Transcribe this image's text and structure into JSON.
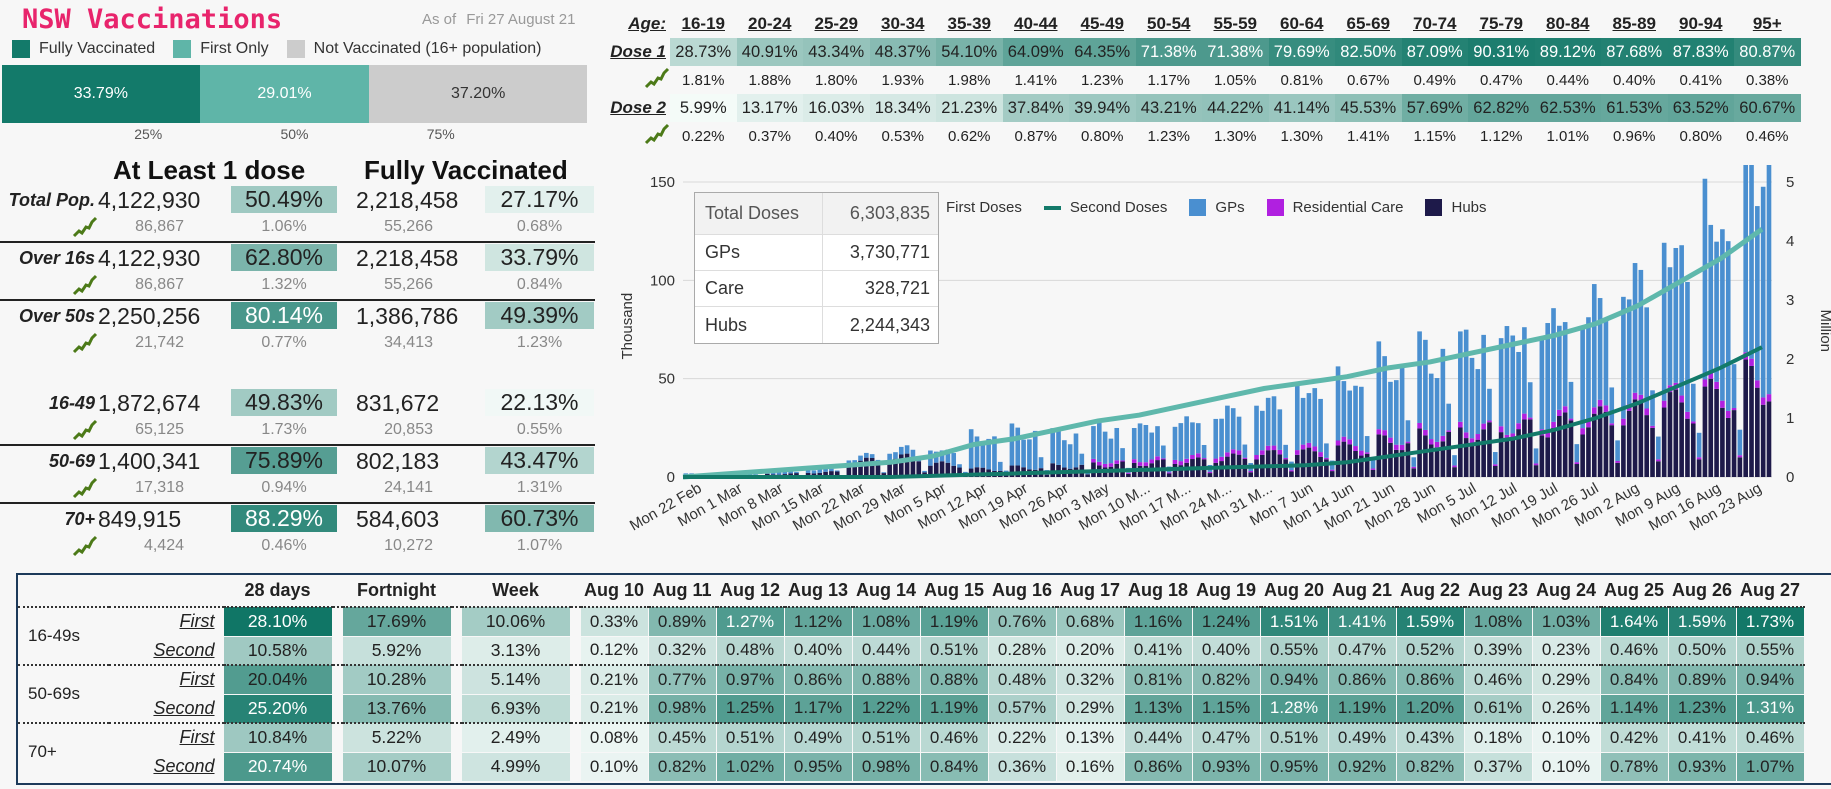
{
  "header": {
    "title": "NSW Vaccinations",
    "as_of_label": "As of",
    "as_of_date": "Fri 27 August 21"
  },
  "status_legend": [
    {
      "label": "Fully Vaccinated",
      "color": "#137a6a"
    },
    {
      "label": "First Only",
      "color": "#5fb5a8"
    },
    {
      "label": "Not Vaccinated (16+ population)",
      "color": "#cccccc"
    }
  ],
  "stacked_bar": {
    "segments": [
      {
        "label": "33.79%",
        "value": 33.79,
        "color": "#137a6a",
        "text_color": "#ffffff"
      },
      {
        "label": "29.01%",
        "value": 29.01,
        "color": "#5fb5a8",
        "text_color": "#ffffff"
      },
      {
        "label": "37.20%",
        "value": 37.2,
        "color": "#cccccc",
        "text_color": "#333333"
      }
    ],
    "ticks": [
      {
        "label": "25%",
        "value": 25
      },
      {
        "label": "50%",
        "value": 50
      },
      {
        "label": "75%",
        "value": 75
      }
    ]
  },
  "stats": {
    "heading_one_dose": "At Least 1 dose",
    "heading_fully": "Fully Vaccinated",
    "rows": [
      {
        "label": "Total Pop.",
        "dose1": "4,122,930",
        "dose1_pct": "50.49%",
        "dose1_pct_v": 50.49,
        "full": "2,218,458",
        "full_pct": "27.17%",
        "full_pct_v": 27.17,
        "d_dose1": "86,867",
        "d_dose1_pct": "1.06%",
        "d_full": "55,266",
        "d_full_pct": "0.68%"
      },
      {
        "label": "Over 16s",
        "dose1": "4,122,930",
        "dose1_pct": "62.80%",
        "dose1_pct_v": 62.8,
        "full": "2,218,458",
        "full_pct": "33.79%",
        "full_pct_v": 33.79,
        "d_dose1": "86,867",
        "d_dose1_pct": "1.32%",
        "d_full": "55,266",
        "d_full_pct": "0.84%"
      },
      {
        "label": "Over 50s",
        "dose1": "2,250,256",
        "dose1_pct": "80.14%",
        "dose1_pct_v": 80.14,
        "full": "1,386,786",
        "full_pct": "49.39%",
        "full_pct_v": 49.39,
        "d_dose1": "21,742",
        "d_dose1_pct": "0.77%",
        "d_full": "34,413",
        "d_full_pct": "1.23%"
      },
      {
        "label": "16-49",
        "dose1": "1,872,674",
        "dose1_pct": "49.83%",
        "dose1_pct_v": 49.83,
        "full": "831,672",
        "full_pct": "22.13%",
        "full_pct_v": 22.13,
        "d_dose1": "65,125",
        "d_dose1_pct": "1.73%",
        "d_full": "20,853",
        "d_full_pct": "0.55%"
      },
      {
        "label": "50-69",
        "dose1": "1,400,341",
        "dose1_pct": "75.89%",
        "dose1_pct_v": 75.89,
        "full": "802,183",
        "full_pct": "43.47%",
        "full_pct_v": 43.47,
        "d_dose1": "17,318",
        "d_dose1_pct": "0.94%",
        "d_full": "24,141",
        "d_full_pct": "1.31%"
      },
      {
        "label": "70+",
        "dose1": "849,915",
        "dose1_pct": "88.29%",
        "dose1_pct_v": 88.29,
        "full": "584,603",
        "full_pct": "60.73%",
        "full_pct_v": 60.73,
        "d_dose1": "4,424",
        "d_dose1_pct": "0.46%",
        "d_full": "10,272",
        "d_full_pct": "1.07%"
      }
    ]
  },
  "age_table": {
    "age_label": "Age:",
    "dose1_label": "Dose 1",
    "dose2_label": "Dose 2",
    "ages": [
      "16-19",
      "20-24",
      "25-29",
      "30-34",
      "35-39",
      "40-44",
      "45-49",
      "50-54",
      "55-59",
      "60-64",
      "65-69",
      "70-74",
      "75-79",
      "80-84",
      "85-89",
      "90-94",
      "95+"
    ],
    "dose1": [
      "28.73%",
      "40.91%",
      "43.34%",
      "48.37%",
      "54.10%",
      "64.09%",
      "64.35%",
      "71.38%",
      "71.38%",
      "79.69%",
      "82.50%",
      "87.09%",
      "90.31%",
      "89.12%",
      "87.68%",
      "87.83%",
      "80.87%"
    ],
    "dose1_v": [
      28.73,
      40.91,
      43.34,
      48.37,
      54.1,
      64.09,
      64.35,
      71.38,
      71.38,
      79.69,
      82.5,
      87.09,
      90.31,
      89.12,
      87.68,
      87.83,
      80.87
    ],
    "dose1_change": [
      "1.81%",
      "1.88%",
      "1.80%",
      "1.93%",
      "1.98%",
      "1.41%",
      "1.23%",
      "1.17%",
      "1.05%",
      "0.81%",
      "0.67%",
      "0.49%",
      "0.47%",
      "0.44%",
      "0.40%",
      "0.41%",
      "0.38%"
    ],
    "dose2": [
      "5.99%",
      "13.17%",
      "16.03%",
      "18.34%",
      "21.23%",
      "37.84%",
      "39.94%",
      "43.21%",
      "44.22%",
      "41.14%",
      "45.53%",
      "57.69%",
      "62.82%",
      "62.53%",
      "61.53%",
      "63.52%",
      "60.67%"
    ],
    "dose2_v": [
      5.99,
      13.17,
      16.03,
      18.34,
      21.23,
      37.84,
      39.94,
      43.21,
      44.22,
      41.14,
      45.53,
      57.69,
      62.82,
      62.53,
      61.53,
      63.52,
      60.67
    ],
    "dose2_change": [
      "0.22%",
      "0.37%",
      "0.40%",
      "0.53%",
      "0.62%",
      "0.87%",
      "0.80%",
      "1.23%",
      "1.30%",
      "1.30%",
      "1.41%",
      "1.15%",
      "1.12%",
      "1.01%",
      "0.96%",
      "0.80%",
      "0.46%"
    ]
  },
  "totals_box": {
    "header_label": "Total Doses",
    "header_value": "6,303,835",
    "rows": [
      {
        "label": "GPs",
        "value": "3,730,771"
      },
      {
        "label": "Care",
        "value": "328,721"
      },
      {
        "label": "Hubs",
        "value": "2,244,343"
      }
    ]
  },
  "chart_data": {
    "type": "bar",
    "stacked": true,
    "left_axis_label": "Thousand",
    "right_axis_label": "Million",
    "ylim": [
      0,
      150
    ],
    "yticks": [
      0,
      50,
      100,
      150
    ],
    "y2lim": [
      0,
      5
    ],
    "y2ticks": [
      0,
      1,
      2,
      3,
      4,
      5
    ],
    "x_tick_labels": [
      "Mon 22 Feb",
      "Mon 1 Mar",
      "Mon 8 Mar",
      "Mon 15 Mar",
      "Mon 22 Mar",
      "Mon 29 Mar",
      "Mon 5 Apr",
      "Mon 12 Apr",
      "Mon 19 Apr",
      "Mon 26 Apr",
      "Mon 3 May",
      "Mon 10 M...",
      "Mon 17 M...",
      "Mon 24 M...",
      "Mon 31 M...",
      "Mon 7 Jun",
      "Mon 14 Jun",
      "Mon 21 Jun",
      "Mon 28 Jun",
      "Mon 5 Jul",
      "Mon 12 Jul",
      "Mon 19 Jul",
      "Mon 26 Jul",
      "Mon 2 Aug",
      "Mon 9 Aug",
      "Mon 16 Aug",
      "Mon 23 Aug"
    ],
    "legend": [
      {
        "label": "First Doses",
        "kind": "line",
        "color": "#5fb8ac"
      },
      {
        "label": "Second Doses",
        "kind": "line",
        "color": "#137a6a"
      },
      {
        "label": "GPs",
        "kind": "bar",
        "color": "#4a8fd0"
      },
      {
        "label": "Residential Care",
        "kind": "bar",
        "color": "#b020e0"
      },
      {
        "label": "Hubs",
        "kind": "bar",
        "color": "#1e1a4a"
      }
    ],
    "weekly_peak_gps_thousand": [
      1,
      1,
      2,
      2,
      3,
      5,
      8,
      20,
      22,
      20,
      21,
      22,
      24,
      27,
      30,
      35,
      38,
      45,
      50,
      55,
      60,
      65,
      70,
      78,
      90,
      105,
      140
    ],
    "weekly_peak_hubs_thousand": [
      1,
      1,
      2,
      3,
      10,
      12,
      8,
      5,
      6,
      7,
      8,
      9,
      10,
      12,
      14,
      15,
      18,
      22,
      25,
      28,
      30,
      33,
      36,
      40,
      45,
      50,
      60
    ],
    "first_doses_million": [
      0,
      0.05,
      0.1,
      0.15,
      0.2,
      0.25,
      0.35,
      0.55,
      0.65,
      0.8,
      0.95,
      1.05,
      1.2,
      1.35,
      1.5,
      1.6,
      1.7,
      1.85,
      1.95,
      2.1,
      2.25,
      2.4,
      2.6,
      2.9,
      3.3,
      3.7,
      4.2
    ],
    "second_doses_million": [
      0,
      0,
      0,
      0,
      0,
      0,
      0.02,
      0.04,
      0.06,
      0.08,
      0.1,
      0.12,
      0.14,
      0.16,
      0.18,
      0.2,
      0.25,
      0.35,
      0.45,
      0.55,
      0.65,
      0.8,
      1.0,
      1.25,
      1.55,
      1.85,
      2.2
    ]
  },
  "daily_table": {
    "headers": [
      "28 days",
      "Fortnight",
      "Week"
    ],
    "days": [
      "Aug 10",
      "Aug 11",
      "Aug 12",
      "Aug 13",
      "Aug 14",
      "Aug 15",
      "Aug 16",
      "Aug 17",
      "Aug 18",
      "Aug 19",
      "Aug 20",
      "Aug 21",
      "Aug 22",
      "Aug 23",
      "Aug 24",
      "Aug 25",
      "Aug 26",
      "Aug 27"
    ],
    "groups": [
      {
        "name": "16-49s",
        "rows": [
          {
            "kind": "First",
            "period": [
              "28.10%",
              "17.69%",
              "10.06%"
            ],
            "period_v": [
              28.1,
              17.69,
              10.06
            ],
            "daily": [
              "0.33%",
              "0.89%",
              "1.27%",
              "1.12%",
              "1.08%",
              "1.19%",
              "0.76%",
              "0.68%",
              "1.16%",
              "1.24%",
              "1.51%",
              "1.41%",
              "1.59%",
              "1.08%",
              "1.03%",
              "1.64%",
              "1.59%",
              "1.73%"
            ],
            "daily_v": [
              0.33,
              0.89,
              1.27,
              1.12,
              1.08,
              1.19,
              0.76,
              0.68,
              1.16,
              1.24,
              1.51,
              1.41,
              1.59,
              1.08,
              1.03,
              1.64,
              1.59,
              1.73
            ]
          },
          {
            "kind": "Second",
            "period": [
              "10.58%",
              "5.92%",
              "3.13%"
            ],
            "period_v": [
              10.58,
              5.92,
              3.13
            ],
            "daily": [
              "0.12%",
              "0.32%",
              "0.48%",
              "0.40%",
              "0.44%",
              "0.51%",
              "0.28%",
              "0.20%",
              "0.41%",
              "0.40%",
              "0.55%",
              "0.47%",
              "0.52%",
              "0.39%",
              "0.23%",
              "0.46%",
              "0.50%",
              "0.55%"
            ],
            "daily_v": [
              0.12,
              0.32,
              0.48,
              0.4,
              0.44,
              0.51,
              0.28,
              0.2,
              0.41,
              0.4,
              0.55,
              0.47,
              0.52,
              0.39,
              0.23,
              0.46,
              0.5,
              0.55
            ]
          }
        ]
      },
      {
        "name": "50-69s",
        "rows": [
          {
            "kind": "First",
            "period": [
              "20.04%",
              "10.28%",
              "5.14%"
            ],
            "period_v": [
              20.04,
              10.28,
              5.14
            ],
            "daily": [
              "0.21%",
              "0.77%",
              "0.97%",
              "0.86%",
              "0.88%",
              "0.88%",
              "0.48%",
              "0.32%",
              "0.81%",
              "0.82%",
              "0.94%",
              "0.86%",
              "0.86%",
              "0.46%",
              "0.29%",
              "0.84%",
              "0.89%",
              "0.94%"
            ],
            "daily_v": [
              0.21,
              0.77,
              0.97,
              0.86,
              0.88,
              0.88,
              0.48,
              0.32,
              0.81,
              0.82,
              0.94,
              0.86,
              0.86,
              0.46,
              0.29,
              0.84,
              0.89,
              0.94
            ]
          },
          {
            "kind": "Second",
            "period": [
              "25.20%",
              "13.76%",
              "6.93%"
            ],
            "period_v": [
              25.2,
              13.76,
              6.93
            ],
            "daily": [
              "0.21%",
              "0.98%",
              "1.25%",
              "1.17%",
              "1.22%",
              "1.19%",
              "0.57%",
              "0.29%",
              "1.13%",
              "1.15%",
              "1.28%",
              "1.19%",
              "1.20%",
              "0.61%",
              "0.26%",
              "1.14%",
              "1.23%",
              "1.31%"
            ],
            "daily_v": [
              0.21,
              0.98,
              1.25,
              1.17,
              1.22,
              1.19,
              0.57,
              0.29,
              1.13,
              1.15,
              1.28,
              1.19,
              1.2,
              0.61,
              0.26,
              1.14,
              1.23,
              1.31
            ]
          }
        ]
      },
      {
        "name": "70+",
        "rows": [
          {
            "kind": "First",
            "period": [
              "10.84%",
              "5.22%",
              "2.49%"
            ],
            "period_v": [
              10.84,
              5.22,
              2.49
            ],
            "daily": [
              "0.08%",
              "0.45%",
              "0.51%",
              "0.49%",
              "0.51%",
              "0.46%",
              "0.22%",
              "0.13%",
              "0.44%",
              "0.47%",
              "0.51%",
              "0.49%",
              "0.43%",
              "0.18%",
              "0.10%",
              "0.42%",
              "0.41%",
              "0.46%"
            ],
            "daily_v": [
              0.08,
              0.45,
              0.51,
              0.49,
              0.51,
              0.46,
              0.22,
              0.13,
              0.44,
              0.47,
              0.51,
              0.49,
              0.43,
              0.18,
              0.1,
              0.42,
              0.41,
              0.46
            ]
          },
          {
            "kind": "Second",
            "period": [
              "20.74%",
              "10.07%",
              "4.99%"
            ],
            "period_v": [
              20.74,
              10.07,
              4.99
            ],
            "daily": [
              "0.10%",
              "0.82%",
              "1.02%",
              "0.95%",
              "0.98%",
              "0.84%",
              "0.36%",
              "0.16%",
              "0.86%",
              "0.93%",
              "0.95%",
              "0.92%",
              "0.82%",
              "0.37%",
              "0.10%",
              "0.78%",
              "0.93%",
              "1.07%"
            ],
            "daily_v": [
              0.1,
              0.82,
              1.02,
              0.95,
              0.98,
              0.84,
              0.36,
              0.16,
              0.86,
              0.93,
              0.95,
              0.92,
              0.82,
              0.37,
              0.1,
              0.78,
              0.93,
              1.07
            ]
          }
        ]
      }
    ]
  }
}
